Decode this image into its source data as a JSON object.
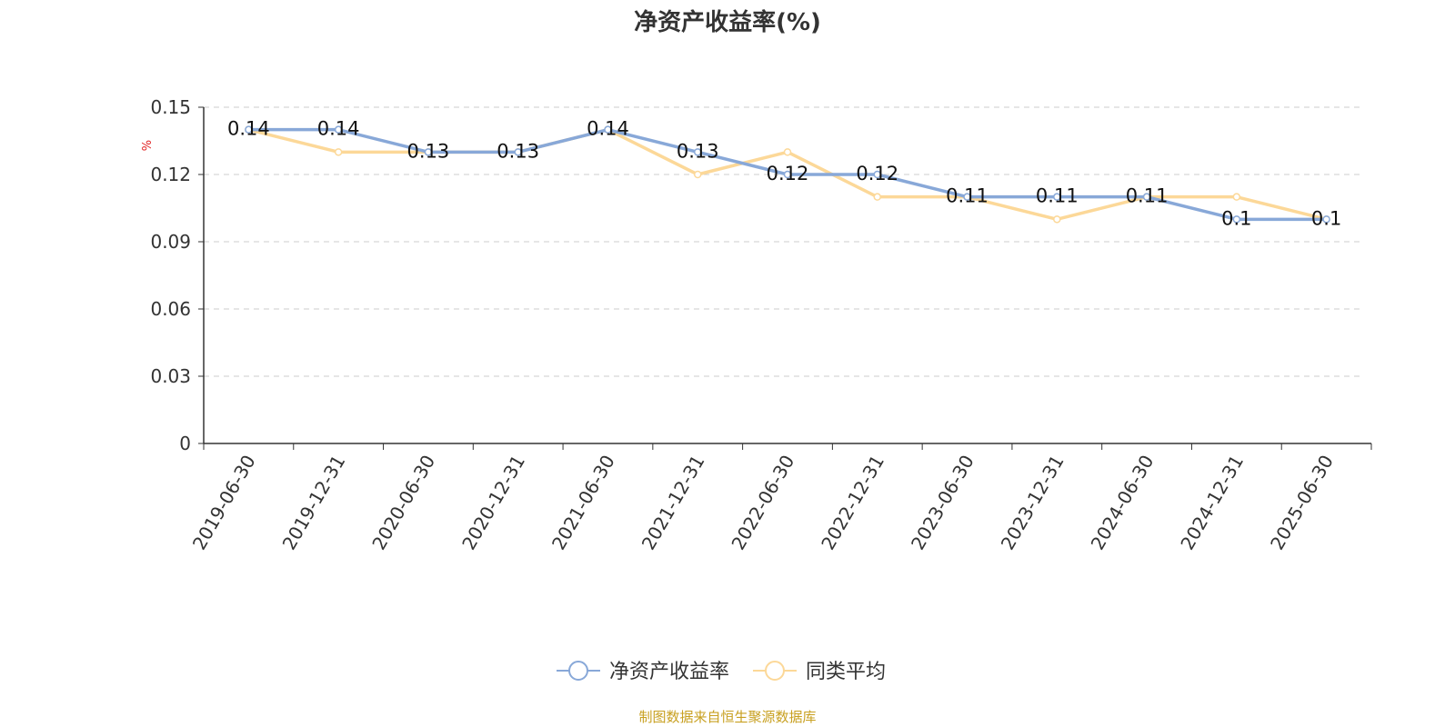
{
  "title": "净资产收益率(%)",
  "source": "制图数据来自恒生聚源数据库",
  "chart_data": {
    "type": "line",
    "title": "净资产收益率(%)",
    "ylabel": "%",
    "xlabel": "",
    "ylim": [
      0,
      0.15
    ],
    "yticks": [
      "0",
      "0.03",
      "0.06",
      "0.09",
      "0.12",
      "0.15"
    ],
    "grid": true,
    "legend_position": "bottom-center",
    "categories": [
      "2019-06-30",
      "2019-12-31",
      "2020-06-30",
      "2020-12-31",
      "2021-06-30",
      "2021-12-31",
      "2022-06-30",
      "2022-12-31",
      "2023-06-30",
      "2023-12-31",
      "2024-06-30",
      "2024-12-31",
      "2025-06-30"
    ],
    "series": [
      {
        "name": "净资产收益率",
        "color": "#88a8d8",
        "values": [
          0.14,
          0.14,
          0.13,
          0.13,
          0.14,
          0.13,
          0.12,
          0.12,
          0.11,
          0.11,
          0.11,
          0.1,
          0.1
        ],
        "labels": [
          "0.14",
          "0.14",
          "0.13",
          "0.13",
          "0.14",
          "0.13",
          "0.12",
          "0.12",
          "0.11",
          "0.11",
          "0.11",
          "0.1",
          "0.1"
        ]
      },
      {
        "name": "同类平均",
        "color": "#fcd898",
        "values": [
          0.14,
          0.13,
          0.13,
          0.13,
          0.14,
          0.12,
          0.13,
          0.11,
          0.11,
          0.1,
          0.11,
          0.11,
          0.1
        ]
      }
    ]
  }
}
